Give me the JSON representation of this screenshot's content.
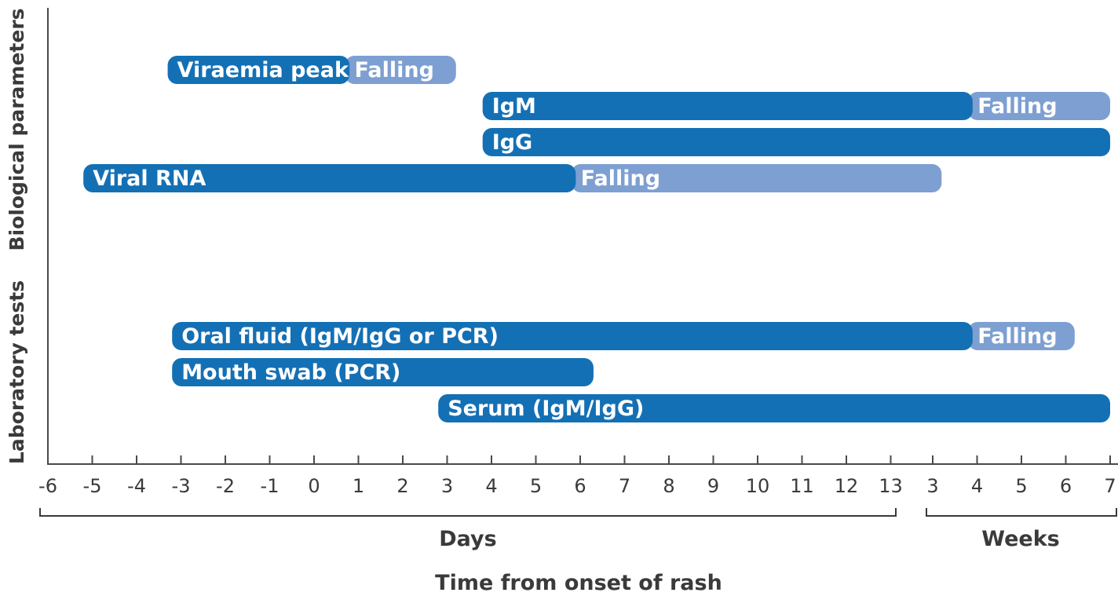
{
  "chart_data": {
    "type": "timeline",
    "xlabel": "Time from onset of rash",
    "tick_labels": [
      "-6",
      "-5",
      "-4",
      "-3",
      "-2",
      "-1",
      "0",
      "1",
      "2",
      "3",
      "4",
      "5",
      "6",
      "7",
      "8",
      "9",
      "10",
      "11",
      "12",
      "13",
      "3",
      "4",
      "5",
      "6",
      "7"
    ],
    "axis_segments": [
      {
        "label": "Days",
        "unit": "days",
        "range": [
          -6,
          13
        ]
      },
      {
        "label": "Weeks",
        "unit": "weeks",
        "range": [
          3,
          7
        ]
      }
    ],
    "groups": [
      {
        "label": "Biological parameters",
        "rows": [
          "viraemia",
          "igm",
          "igg",
          "viral-rna"
        ]
      },
      {
        "label": "Laboratory tests",
        "rows": [
          "oral-fluid",
          "mouth-swab",
          "serum"
        ]
      }
    ],
    "colors": {
      "primary": "#1470b5",
      "falling": "#7d9fd2",
      "axis": "#4a4a4a"
    },
    "series": [
      {
        "id": "viraemia",
        "label": "Viraemia peak",
        "start": -3.3,
        "end": 0.8,
        "falling": {
          "label": "Falling",
          "start": 0.7,
          "end": 3.2
        }
      },
      {
        "id": "igm",
        "label": "IgM",
        "start": 3.8,
        "end": "3.9w",
        "falling": {
          "label": "Falling",
          "start": "3.8w",
          "end": "7w"
        }
      },
      {
        "id": "igg",
        "label": "IgG",
        "start": 3.8,
        "end": "7w"
      },
      {
        "id": "viral-rna",
        "label": "Viral RNA",
        "start": -5.2,
        "end": 5.9,
        "falling": {
          "label": "Falling",
          "start": 5.8,
          "end": "3.2w"
        }
      },
      {
        "id": "oral-fluid",
        "label": "Oral fluid (IgM/IgG or PCR)",
        "start": -3.2,
        "end": "3.9w",
        "falling": {
          "label": "Falling",
          "start": "3.8w",
          "end": "6.2w"
        }
      },
      {
        "id": "mouth-swab",
        "label": "Mouth swab (PCR)",
        "start": -3.2,
        "end": 6.3
      },
      {
        "id": "serum",
        "label": "Serum (IgM/IgG)",
        "start": 2.8,
        "end": "7w"
      }
    ]
  }
}
